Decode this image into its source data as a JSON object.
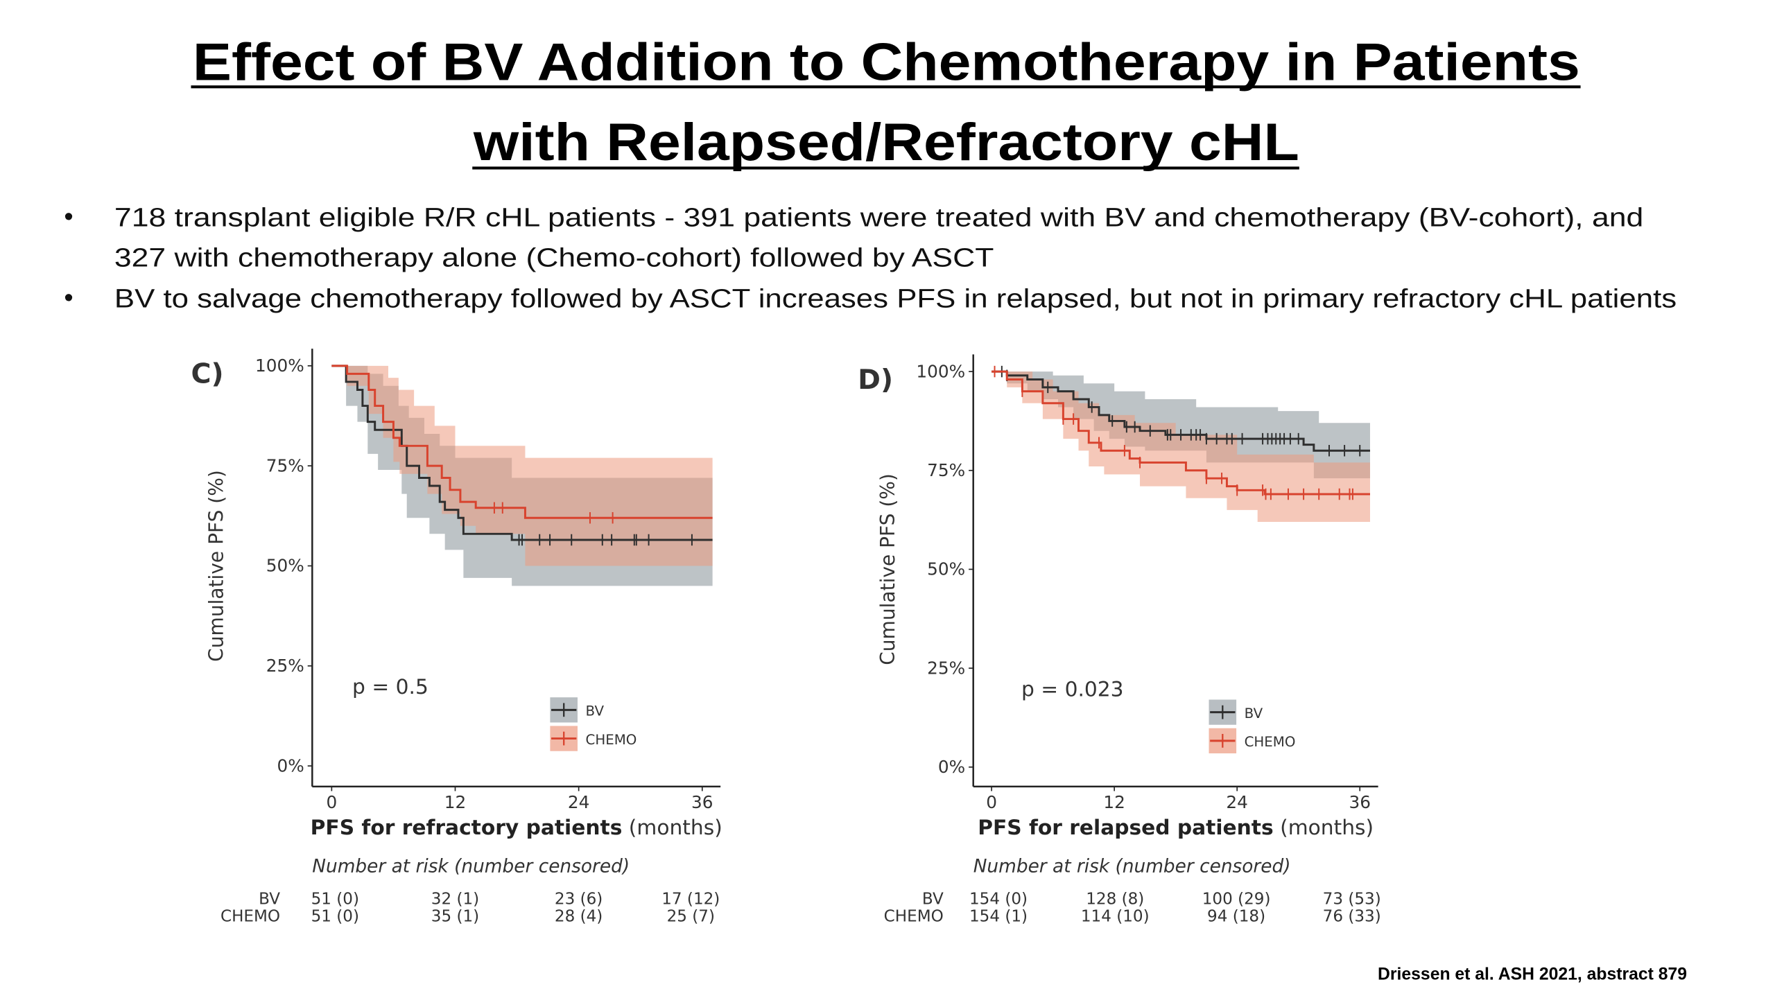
{
  "slide": {
    "title_line1": "Effect of BV Addition to Chemotherapy in Patients",
    "title_line2": "with Relapsed/Refractory cHL",
    "bullets": [
      {
        "lines": [
          "718 transplant eligible R/R cHL patients - 391 patients were treated with BV and chemotherapy (BV-cohort), and",
          "327 with chemotherapy alone (Chemo-cohort) followed by ASCT"
        ]
      },
      {
        "lines": [
          "BV to salvage chemotherapy followed by ASCT increases PFS in relapsed, but not in primary refractory cHL patients"
        ]
      }
    ],
    "bullet_glyph": "•",
    "citation": "Driessen et al. ASH 2021, abstract  879"
  },
  "colors": {
    "bv": "#2f2f2f",
    "chemo": "#d8432e",
    "bv_band": "#9aa3a8",
    "chemo_band": "#ec9a80"
  },
  "chart_data": [
    {
      "type": "line",
      "panel_label": "C)",
      "xlabel_bold": "PFS for refractory patients",
      "xlabel_unit": "(months)",
      "ylabel": "Cumulative PFS (%)",
      "xlim": [
        0,
        37
      ],
      "ylim": [
        0,
        100
      ],
      "xticks": [
        "0",
        "12",
        "24",
        "36"
      ],
      "yticks": [
        "0%",
        "25%",
        "50%",
        "75%",
        "100%"
      ],
      "annotation": "p = 0.5",
      "legend": [
        "BV",
        "CHEMO"
      ],
      "legend_placement": "bottom-right",
      "grid": false,
      "series": [
        {
          "name": "BV",
          "steps": [
            [
              0,
              100
            ],
            [
              1.4,
              96
            ],
            [
              2.5,
              94
            ],
            [
              3,
              90
            ],
            [
              3.5,
              86
            ],
            [
              4.2,
              84
            ],
            [
              6.8,
              80
            ],
            [
              7.3,
              75
            ],
            [
              8.5,
              72
            ],
            [
              9.5,
              70
            ],
            [
              10.5,
              66
            ],
            [
              11,
              64
            ],
            [
              12.3,
              62
            ],
            [
              12.8,
              58
            ],
            [
              17.5,
              56.5
            ],
            [
              37,
              56.5
            ]
          ],
          "ci_upper": [
            [
              0,
              100
            ],
            [
              2.5,
              100
            ],
            [
              3.5,
              98
            ],
            [
              5,
              95
            ],
            [
              6.5,
              90
            ],
            [
              7.5,
              87
            ],
            [
              9,
              83
            ],
            [
              10.5,
              80
            ],
            [
              12,
              77
            ],
            [
              17.5,
              72
            ],
            [
              37,
              72
            ]
          ],
          "ci_lower": [
            [
              0,
              100
            ],
            [
              1.4,
              90
            ],
            [
              2.5,
              86
            ],
            [
              3.5,
              78
            ],
            [
              4.5,
              74
            ],
            [
              6.8,
              68
            ],
            [
              7.3,
              62
            ],
            [
              9.5,
              58
            ],
            [
              11,
              54
            ],
            [
              12.8,
              47
            ],
            [
              17.5,
              45
            ],
            [
              37,
              45
            ]
          ],
          "censored": [
            18.2,
            18.5,
            20.2,
            21.2,
            23.3,
            26.3,
            27.2,
            29.4,
            29.6,
            30.8,
            35.0
          ]
        },
        {
          "name": "CHEMO",
          "steps": [
            [
              0,
              100
            ],
            [
              1.5,
              98
            ],
            [
              3.6,
              94
            ],
            [
              4.2,
              90
            ],
            [
              5,
              86
            ],
            [
              6,
              82
            ],
            [
              6.6,
              80
            ],
            [
              9.3,
              75
            ],
            [
              10.7,
              72
            ],
            [
              11.5,
              69
            ],
            [
              12.5,
              66
            ],
            [
              14,
              64.5
            ],
            [
              18.8,
              62
            ],
            [
              37,
              62
            ]
          ],
          "ci_upper": [
            [
              0,
              100
            ],
            [
              3.6,
              100
            ],
            [
              5.5,
              97
            ],
            [
              6.5,
              94
            ],
            [
              8,
              90
            ],
            [
              10,
              85
            ],
            [
              12,
              80
            ],
            [
              18.8,
              77
            ],
            [
              37,
              77
            ]
          ],
          "ci_lower": [
            [
              0,
              100
            ],
            [
              1.5,
              95
            ],
            [
              3.6,
              88
            ],
            [
              5,
              82
            ],
            [
              6,
              76
            ],
            [
              6.6,
              73
            ],
            [
              9.3,
              68
            ],
            [
              10.7,
              63
            ],
            [
              12.5,
              60
            ],
            [
              14,
              58
            ],
            [
              18.8,
              50
            ],
            [
              37,
              50
            ]
          ],
          "censored": [
            15.8,
            16.6,
            25.1,
            27.3
          ]
        }
      ],
      "risk_table": {
        "title": "Number at risk (number censored)",
        "rows": [
          {
            "label": "BV",
            "values": [
              "51 (0)",
              "32 (1)",
              "23 (6)",
              "17 (12)"
            ]
          },
          {
            "label": "CHEMO",
            "values": [
              "51 (0)",
              "35 (1)",
              "28 (4)",
              "25 (7)"
            ]
          }
        ]
      }
    },
    {
      "type": "line",
      "panel_label": "D)",
      "xlabel_bold": "PFS for relapsed patients",
      "xlabel_unit": "(months)",
      "ylabel": "Cumulative PFS (%)",
      "xlim": [
        0,
        37
      ],
      "ylim": [
        0,
        100
      ],
      "xticks": [
        "0",
        "12",
        "24",
        "36"
      ],
      "yticks": [
        "0%",
        "25%",
        "50%",
        "75%",
        "100%"
      ],
      "annotation": "p = 0.023",
      "legend": [
        "BV",
        "CHEMO"
      ],
      "legend_placement": "bottom-right",
      "grid": false,
      "series": [
        {
          "name": "BV",
          "steps": [
            [
              0,
              100
            ],
            [
              1.5,
              99
            ],
            [
              3.5,
              98
            ],
            [
              5,
              96
            ],
            [
              6.5,
              95
            ],
            [
              8,
              93
            ],
            [
              9.5,
              91
            ],
            [
              10.5,
              89
            ],
            [
              11.5,
              87.5
            ],
            [
              13,
              86
            ],
            [
              14.5,
              85
            ],
            [
              17,
              84
            ],
            [
              21,
              83
            ],
            [
              30.5,
              81.5
            ],
            [
              31.5,
              80
            ],
            [
              37,
              80
            ]
          ],
          "ci_upper": [
            [
              0,
              100
            ],
            [
              3,
              100
            ],
            [
              6,
              99
            ],
            [
              9,
              97
            ],
            [
              12,
              95
            ],
            [
              15,
              93
            ],
            [
              20,
              91
            ],
            [
              28,
              90
            ],
            [
              32,
              87
            ],
            [
              37,
              87
            ]
          ],
          "ci_lower": [
            [
              0,
              100
            ],
            [
              1.5,
              97
            ],
            [
              3.5,
              95
            ],
            [
              5,
              93
            ],
            [
              6.5,
              91
            ],
            [
              8,
              88
            ],
            [
              10,
              85
            ],
            [
              11.5,
              83
            ],
            [
              13,
              81
            ],
            [
              15,
              80
            ],
            [
              21,
              77
            ],
            [
              31.5,
              73
            ],
            [
              37,
              73
            ]
          ],
          "censored": [
            1,
            1.5,
            5.5,
            9.8,
            11.8,
            13.2,
            14,
            15.5,
            17.2,
            17.5,
            18.5,
            19.5,
            20,
            20.4,
            21,
            22,
            23,
            23.5,
            24.5,
            26.5,
            27,
            27.4,
            27.8,
            28.2,
            28.6,
            29.2,
            30,
            33,
            34.5,
            36
          ]
        },
        {
          "name": "CHEMO",
          "steps": [
            [
              0,
              100
            ],
            [
              1.5,
              98
            ],
            [
              3,
              95
            ],
            [
              5,
              92
            ],
            [
              7,
              88
            ],
            [
              8.5,
              85
            ],
            [
              9.5,
              82
            ],
            [
              10.7,
              80
            ],
            [
              13.5,
              78
            ],
            [
              14.5,
              77
            ],
            [
              19,
              75
            ],
            [
              21,
              73
            ],
            [
              23,
              71
            ],
            [
              24,
              70
            ],
            [
              26.7,
              69
            ],
            [
              37,
              69
            ]
          ],
          "ci_upper": [
            [
              0,
              100
            ],
            [
              2,
              100
            ],
            [
              4,
              98
            ],
            [
              6,
              95
            ],
            [
              8.5,
              92
            ],
            [
              10.5,
              89
            ],
            [
              14,
              87
            ],
            [
              18,
              84
            ],
            [
              24,
              79
            ],
            [
              31.5,
              77
            ],
            [
              37,
              77
            ]
          ],
          "ci_lower": [
            [
              0,
              100
            ],
            [
              1.5,
              96
            ],
            [
              3,
              92
            ],
            [
              5,
              88
            ],
            [
              7,
              83
            ],
            [
              8.5,
              80
            ],
            [
              9.5,
              76
            ],
            [
              11,
              74
            ],
            [
              14.5,
              71
            ],
            [
              19,
              68
            ],
            [
              23,
              65
            ],
            [
              26,
              62
            ],
            [
              37,
              62
            ]
          ],
          "censored": [
            0.3,
            3,
            7,
            8,
            10.5,
            13,
            14.5,
            21,
            22.5,
            24,
            26.5,
            26.8,
            27.3,
            29,
            30.5,
            32,
            34,
            35,
            35.3
          ]
        }
      ],
      "risk_table": {
        "title": "Number at risk (number censored)",
        "rows": [
          {
            "label": "BV",
            "values": [
              "154 (0)",
              "128 (8)",
              "100 (29)",
              "73 (53)"
            ]
          },
          {
            "label": "CHEMO",
            "values": [
              "154 (1)",
              "114 (10)",
              "94 (18)",
              "76 (33)"
            ]
          }
        ]
      }
    }
  ]
}
